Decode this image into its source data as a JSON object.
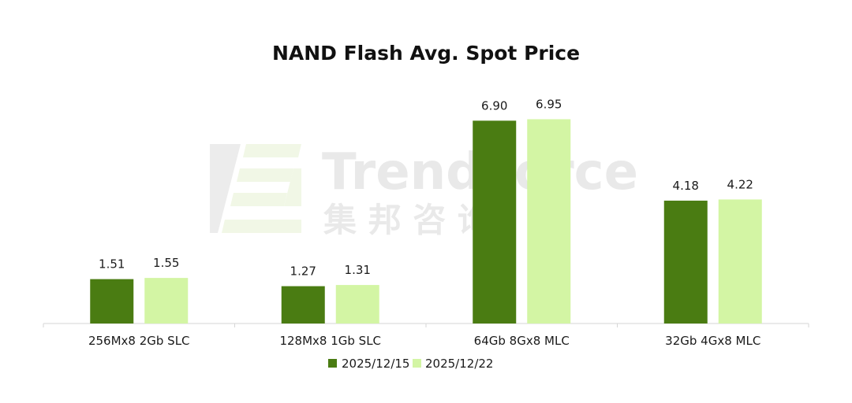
{
  "chart_data": {
    "type": "bar",
    "title": "NAND Flash Avg. Spot Price",
    "xlabel": "",
    "ylabel": "",
    "categories": [
      "256Mx8 2Gb SLC",
      "128Mx8 1Gb SLC",
      "64Gb 8Gx8 MLC",
      "32Gb 4Gx8 MLC"
    ],
    "series": [
      {
        "name": "2025/12/15",
        "values": [
          1.51,
          1.27,
          6.9,
          4.18
        ],
        "labels": [
          "1.51",
          "1.27",
          "6.90",
          "4.18"
        ]
      },
      {
        "name": "2025/12/22",
        "values": [
          1.55,
          1.31,
          6.95,
          4.22
        ],
        "labels": [
          "1.55",
          "1.31",
          "6.95",
          "4.22"
        ]
      }
    ],
    "ylim": [
      0,
      7.15
    ],
    "grid": false,
    "legend": "bottom-center",
    "colors": [
      "#4a7c12",
      "#d3f5a4"
    ]
  },
  "watermark": {
    "text_en": "TrendForce",
    "text_zh": "集 邦 咨 询"
  }
}
